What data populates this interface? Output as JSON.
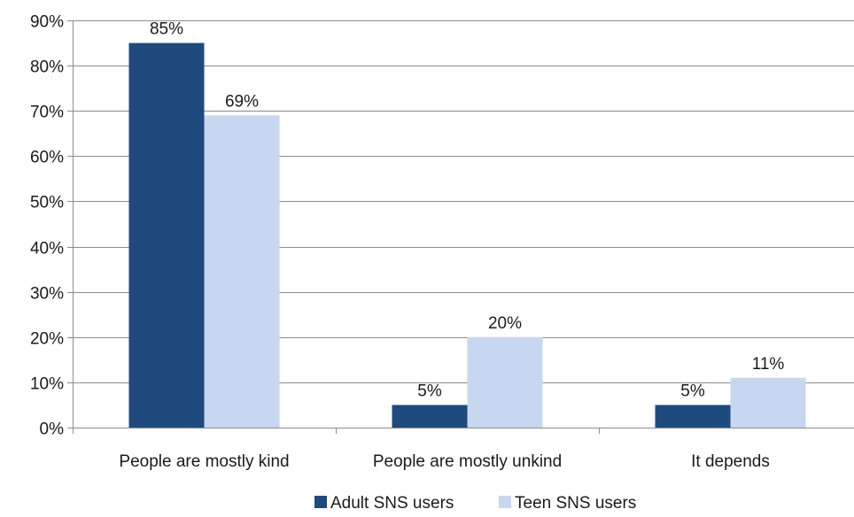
{
  "chart_data": {
    "type": "bar",
    "title": "",
    "xlabel": "",
    "ylabel": "",
    "categories": [
      "People are mostly kind",
      "People are mostly unkind",
      "It depends"
    ],
    "series": [
      {
        "name": "Adult SNS users",
        "values": [
          85,
          5,
          5
        ],
        "labels": [
          "85%",
          "5%",
          "5%"
        ],
        "color": "#1f4a7e"
      },
      {
        "name": "Teen SNS users",
        "values": [
          69,
          20,
          11
        ],
        "labels": [
          "69%",
          "20%",
          "11%"
        ],
        "color": "#c6d7ef"
      }
    ],
    "ylim": [
      0,
      90
    ],
    "yticks": [
      0,
      10,
      20,
      30,
      40,
      50,
      60,
      70,
      80,
      90
    ],
    "ytick_labels": [
      "0%",
      "10%",
      "20%",
      "30%",
      "40%",
      "50%",
      "60%",
      "70%",
      "80%",
      "90%"
    ],
    "grid": true,
    "legend_position": "bottom"
  }
}
